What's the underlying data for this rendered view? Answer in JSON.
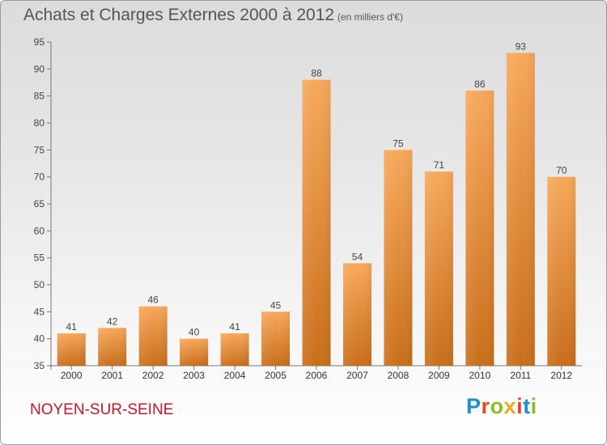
{
  "header": {
    "title": "Achats et Charges Externes 2000 à 2012",
    "unit": "(en milliers d'€)"
  },
  "footer": {
    "commune": "NOYEN-SUR-SEINE",
    "logo_text": "Proxiti",
    "logo_colors": [
      "#1e8fd0",
      "#e8481c",
      "#8cbc22",
      "#f2a81d",
      "#e8481c",
      "#1e8fd0",
      "#8cbc22"
    ]
  },
  "colors": {
    "bar_top": "#f7a85a",
    "bar_bottom": "#c96e1b",
    "title_text": "#555555",
    "commune_text": "#c8162b"
  },
  "chart_data": {
    "type": "bar",
    "title": "Achats et Charges Externes 2000 à 2012",
    "subtitle": "(en milliers d'€)",
    "xlabel": "",
    "ylabel": "",
    "categories": [
      "2000",
      "2001",
      "2002",
      "2003",
      "2004",
      "2005",
      "2006",
      "2007",
      "2008",
      "2009",
      "2010",
      "2011",
      "2012"
    ],
    "values": [
      41,
      42,
      46,
      40,
      41,
      45,
      88,
      54,
      75,
      71,
      86,
      93,
      70
    ],
    "ylim": [
      35,
      95
    ],
    "yticks": [
      35,
      40,
      45,
      50,
      55,
      60,
      65,
      70,
      75,
      80,
      85,
      90,
      95
    ],
    "grid": false,
    "legend": "none"
  }
}
